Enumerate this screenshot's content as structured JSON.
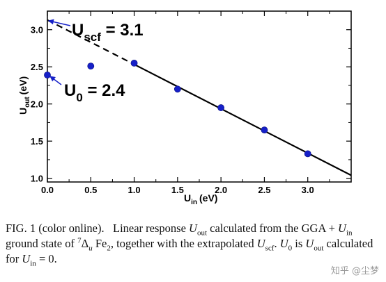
{
  "chart_data": {
    "type": "scatter",
    "x_label_main": "U",
    "x_label_sub": "in",
    "x_label_unit": "(eV)",
    "y_label_main": "U",
    "y_label_sub": "out",
    "y_label_unit": "(eV)",
    "xlim": [
      0.0,
      3.5
    ],
    "ylim": [
      0.95,
      3.25
    ],
    "x_ticks": [
      "0.0",
      "0.5",
      "1.0",
      "1.5",
      "2.0",
      "2.5",
      "3.0"
    ],
    "x_tick_values": [
      0.0,
      0.5,
      1.0,
      1.5,
      2.0,
      2.5,
      3.0
    ],
    "y_ticks": [
      "1.0",
      "1.5",
      "2.0",
      "2.5",
      "3.0"
    ],
    "y_tick_values": [
      1.0,
      1.5,
      2.0,
      2.5,
      3.0
    ],
    "points": {
      "x": [
        0.0,
        0.5,
        1.0,
        1.5,
        2.0,
        2.5,
        3.0
      ],
      "y": [
        2.39,
        2.51,
        2.55,
        2.2,
        1.95,
        1.65,
        1.33
      ]
    },
    "fit_line": {
      "x_start": 0.0,
      "y_start": 3.13,
      "x_end": 3.5,
      "y_end": 1.04,
      "dashed_until_x": 1.0
    },
    "annotations": [
      {
        "main": "U",
        "sub": "scf",
        "value": " = 3.1",
        "arrow_to": [
          0.0,
          3.13
        ]
      },
      {
        "main": "U",
        "sub": "0",
        "value": " = 2.4",
        "arrow_to": [
          0.0,
          2.39
        ]
      }
    ],
    "colors": {
      "points": "#1620c8",
      "arrow": "#1620c8",
      "line": "#000000"
    }
  },
  "caption": {
    "fig": "FIG. 1 (color online).",
    "t1": "Linear response ",
    "u_out_main": "U",
    "u_out_sub": "out",
    "t2": " calculated from the GGA + ",
    "u_in_main": "U",
    "u_in_sub": "in",
    "t3": " ground state of ",
    "state_sup": "7",
    "state_delta": "Δ",
    "state_u": "u",
    "fe": " Fe",
    "fe_sub": "2",
    "t4": ", together with the extrapolated ",
    "uscf_main": "U",
    "uscf_sub": "scf",
    "t5": ". ",
    "u0_main": "U",
    "u0_sub": "0",
    "t6": " is ",
    "uout2_main": "U",
    "uout2_sub": "out",
    "t7": " calculated for ",
    "uin2_main": "U",
    "uin2_sub": "in",
    "t8": " = 0."
  },
  "watermark": "知乎 @尘梦"
}
